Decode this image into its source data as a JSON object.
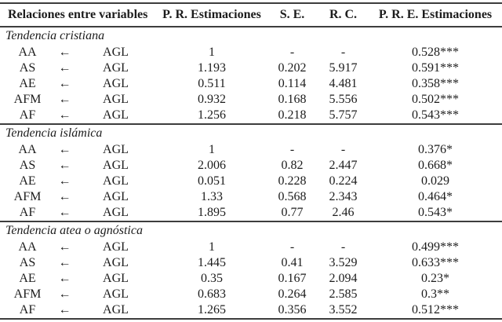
{
  "table": {
    "headers": [
      "Relaciones entre variables",
      "P. R. Estimaciones",
      "S. E.",
      "R. C.",
      "P. R. E. Estimaciones"
    ],
    "arrow": "←",
    "groups": [
      {
        "title": "Tendencia cristiana",
        "rows": [
          {
            "dep": "AA",
            "pred": "AGL",
            "est": "1",
            "se": "-",
            "rc": "-",
            "std": "0.528***"
          },
          {
            "dep": "AS",
            "pred": "AGL",
            "est": "1.193",
            "se": "0.202",
            "rc": "5.917",
            "std": "0.591***"
          },
          {
            "dep": "AE",
            "pred": "AGL",
            "est": "0.511",
            "se": "0.114",
            "rc": "4.481",
            "std": "0.358***"
          },
          {
            "dep": "AFM",
            "pred": "AGL",
            "est": "0.932",
            "se": "0.168",
            "rc": "5.556",
            "std": "0.502***"
          },
          {
            "dep": "AF",
            "pred": "AGL",
            "est": "1.256",
            "se": "0.218",
            "rc": "5.757",
            "std": "0.543***"
          }
        ]
      },
      {
        "title": "Tendencia islámica",
        "rows": [
          {
            "dep": "AA",
            "pred": "AGL",
            "est": "1",
            "se": "-",
            "rc": "-",
            "std": "0.376*"
          },
          {
            "dep": "AS",
            "pred": "AGL",
            "est": "2.006",
            "se": "0.82",
            "rc": "2.447",
            "std": "0.668*"
          },
          {
            "dep": "AE",
            "pred": "AGL",
            "est": "0.051",
            "se": "0.228",
            "rc": "0.224",
            "std": "0.029"
          },
          {
            "dep": "AFM",
            "pred": "AGL",
            "est": "1.33",
            "se": "0.568",
            "rc": "2.343",
            "std": "0.464*"
          },
          {
            "dep": "AF",
            "pred": "AGL",
            "est": "1.895",
            "se": "0.77",
            "rc": "2.46",
            "std": "0.543*"
          }
        ]
      },
      {
        "title": "Tendencia atea o agnóstica",
        "rows": [
          {
            "dep": "AA",
            "pred": "AGL",
            "est": "1",
            "se": "-",
            "rc": "-",
            "std": "0.499***"
          },
          {
            "dep": "AS",
            "pred": "AGL",
            "est": "1.445",
            "se": "0.41",
            "rc": "3.529",
            "std": "0.633***"
          },
          {
            "dep": "AE",
            "pred": "AGL",
            "est": "0.35",
            "se": "0.167",
            "rc": "2.094",
            "std": "0.23*"
          },
          {
            "dep": "AFM",
            "pred": "AGL",
            "est": "0.683",
            "se": "0.264",
            "rc": "2.585",
            "std": "0.3**"
          },
          {
            "dep": "AF",
            "pred": "AGL",
            "est": "1.265",
            "se": "0.356",
            "rc": "3.552",
            "std": "0.512***"
          }
        ]
      }
    ]
  },
  "colors": {
    "text": "#1c1c1c",
    "rule": "#3d3d3d",
    "background": "#ffffff"
  }
}
